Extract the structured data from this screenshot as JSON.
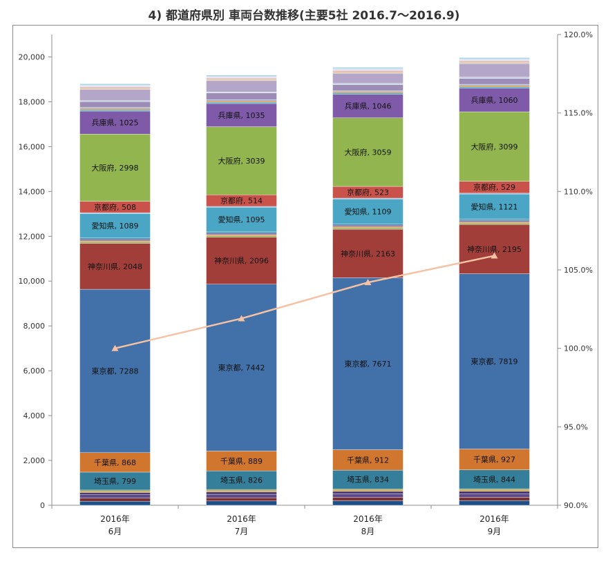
{
  "title": "4) 都道府県別 車両台数推移(主要5社 2016.7～2016.9)",
  "chart_data": {
    "type": "bar",
    "stacked": true,
    "categories": [
      [
        "2016年",
        "6月"
      ],
      [
        "2016年",
        "7月"
      ],
      [
        "2016年",
        "8月"
      ],
      [
        "2016年",
        "9月"
      ]
    ],
    "ylim": [
      0,
      21000
    ],
    "yticks": [
      0,
      2000,
      4000,
      6000,
      8000,
      10000,
      12000,
      14000,
      16000,
      18000,
      20000
    ],
    "ytick_labels": [
      "0",
      "2,000",
      "4,000",
      "6,000",
      "8,000",
      "10,000",
      "12,000",
      "14,000",
      "16,000",
      "18,000",
      "20,000"
    ],
    "y2lim": [
      90,
      120
    ],
    "y2ticks": [
      90,
      95,
      100,
      105,
      110,
      115,
      120
    ],
    "y2tick_labels": [
      "90.0%",
      "95.0%",
      "100.0%",
      "105.0%",
      "110.0%",
      "115.0%",
      "120.0%"
    ],
    "grid": false,
    "series": [
      {
        "values": [
          180,
          190,
          200,
          205
        ],
        "color": "#1f4f87"
      },
      {
        "values": [
          140,
          145,
          150,
          150
        ],
        "color": "#7a3030"
      },
      {
        "values": [
          150,
          155,
          160,
          160
        ],
        "color": "#5b4a87"
      },
      {
        "values": [
          100,
          105,
          110,
          110
        ],
        "color": "#4a3a72"
      },
      {
        "values": [
          60,
          60,
          62,
          62
        ],
        "color": "#d6a14a"
      },
      {
        "values": [
          50,
          50,
          50,
          50
        ],
        "color": "#7a8a3a"
      },
      {
        "name": "埼玉県",
        "values": [
          799,
          826,
          834,
          844
        ],
        "color": "#357f9a",
        "label": true
      },
      {
        "name": "千葉県",
        "values": [
          868,
          889,
          912,
          927
        ],
        "color": "#d0762e",
        "label": true
      },
      {
        "name": "東京都",
        "values": [
          7288,
          7442,
          7671,
          7819
        ],
        "color": "#4270a8",
        "label": true
      },
      {
        "name": "神奈川県",
        "values": [
          2048,
          2096,
          2163,
          2195
        ],
        "color": "#a23e3a",
        "label": true
      },
      {
        "values": [
          60,
          60,
          60,
          60
        ],
        "color": "#90a850"
      },
      {
        "values": [
          60,
          60,
          60,
          60
        ],
        "color": "#d8a050"
      },
      {
        "values": [
          60,
          60,
          60,
          60
        ],
        "color": "#6f5aa0"
      },
      {
        "values": [
          60,
          60,
          60,
          60
        ],
        "color": "#3a8aa8"
      },
      {
        "name": "愛知県",
        "values": [
          1089,
          1095,
          1109,
          1121
        ],
        "color": "#4aa6c4",
        "label": true
      },
      {
        "values": [
          40,
          40,
          40,
          40
        ],
        "color": "#96b4d8"
      },
      {
        "name": "京都府",
        "values": [
          508,
          514,
          523,
          529
        ],
        "color": "#c9534a",
        "label": true
      },
      {
        "name": "大阪府",
        "values": [
          2998,
          3039,
          3059,
          3099
        ],
        "color": "#92b550",
        "label": true
      },
      {
        "name": "兵庫県",
        "values": [
          1025,
          1035,
          1046,
          1060
        ],
        "color": "#7e5aa8",
        "label": true
      },
      {
        "values": [
          60,
          60,
          60,
          60
        ],
        "color": "#3fa9c4"
      },
      {
        "values": [
          60,
          60,
          60,
          60
        ],
        "color": "#d88a3e"
      },
      {
        "values": [
          50,
          50,
          50,
          50
        ],
        "color": "#8fa8cc"
      },
      {
        "values": [
          250,
          300,
          260,
          260
        ],
        "color": "#9d8cb6"
      },
      {
        "values": [
          50,
          50,
          60,
          60
        ],
        "color": "#bfd0e4"
      },
      {
        "values": [
          500,
          500,
          450,
          600
        ],
        "color": "#b3a6c8"
      },
      {
        "values": [
          60,
          60,
          60,
          60
        ],
        "color": "#e0c29a"
      },
      {
        "values": [
          60,
          60,
          60,
          60
        ],
        "color": "#d8b4b4"
      },
      {
        "values": [
          60,
          60,
          80,
          80
        ],
        "color": "#e6e0ef"
      },
      {
        "values": [
          70,
          70,
          70,
          70
        ],
        "color": "#a8d8e6"
      }
    ],
    "line": {
      "axis": "right",
      "values": [
        100.0,
        101.9,
        104.2,
        105.9
      ],
      "color": "#f6c2a4"
    }
  }
}
